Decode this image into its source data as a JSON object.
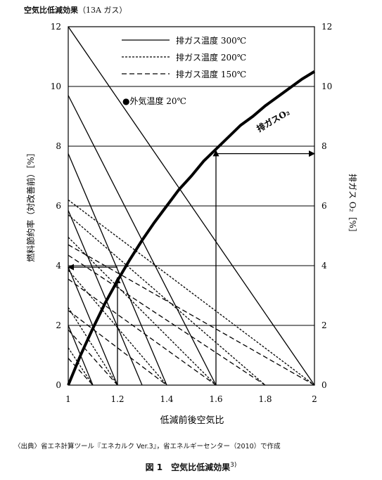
{
  "header": {
    "title": "空気比低減効果",
    "title_sub": "（13A ガス）"
  },
  "source_note": "〈出典〉省エネ計算ツール『エネカルク Ver.3』，省エネルギーセンター（2010）で作成",
  "caption": {
    "label": "図 1　空気比低減効果",
    "ref": "3)"
  },
  "chart_data": {
    "type": "line",
    "xlabel": "低減前後空気比",
    "ylabel": "燃料節約率（対改善前）［%］",
    "y2label": "排ガス O₂［%］",
    "xlim": [
      1,
      2
    ],
    "ylim": [
      0,
      12
    ],
    "y2lim": [
      0,
      12
    ],
    "x_ticks": [
      "1",
      "1.2",
      "1.4",
      "1.6",
      "1.8",
      "2"
    ],
    "y_ticks": [
      "0",
      "2",
      "4",
      "6",
      "8",
      "10",
      "12"
    ],
    "y2_ticks": [
      "0",
      "2",
      "4",
      "6",
      "8",
      "10",
      "12"
    ],
    "grid": {
      "horizontal": true,
      "vertical": false
    },
    "legend": {
      "position": "top-right",
      "items": [
        {
          "label": "排ガス温度 300℃",
          "style": "solid"
        },
        {
          "label": "排ガス温度 200℃",
          "style": "dotted"
        },
        {
          "label": "排ガス温度 150℃",
          "style": "dashed"
        }
      ]
    },
    "annotation": "●外気温度 20℃",
    "curve": {
      "name": "排ガスO₂",
      "axis": "right",
      "x": [
        1.0,
        1.05,
        1.1,
        1.15,
        1.2,
        1.25,
        1.3,
        1.35,
        1.4,
        1.45,
        1.5,
        1.55,
        1.6,
        1.65,
        1.7,
        1.75,
        1.8,
        1.85,
        1.9,
        1.95,
        2.0
      ],
      "y": [
        0,
        1.0,
        1.9,
        2.75,
        3.5,
        4.2,
        4.85,
        5.45,
        6.0,
        6.55,
        7.0,
        7.5,
        7.9,
        8.3,
        8.7,
        9.0,
        9.35,
        9.65,
        9.95,
        10.25,
        10.5
      ]
    },
    "families": [
      {
        "name": "排ガス温度 300℃",
        "style": "solid",
        "lines": [
          {
            "to_x": 1.1,
            "start_y": 2.0
          },
          {
            "to_x": 1.2,
            "start_y": 3.95
          },
          {
            "to_x": 1.3,
            "start_y": 5.85
          },
          {
            "to_x": 1.4,
            "start_y": 7.75
          },
          {
            "to_x": 1.6,
            "start_y": 9.7
          },
          {
            "to_x": 2.0,
            "start_y": 12.0
          }
        ]
      },
      {
        "name": "排ガス温度 200℃",
        "style": "dotted",
        "lines": [
          {
            "to_x": 1.1,
            "start_y": 1.25
          },
          {
            "to_x": 1.2,
            "start_y": 2.6
          },
          {
            "to_x": 1.4,
            "start_y": 3.85
          },
          {
            "to_x": 1.6,
            "start_y": 4.95
          },
          {
            "to_x": 1.8,
            "start_y": 5.7
          },
          {
            "to_x": 2.0,
            "start_y": 6.2
          }
        ]
      },
      {
        "name": "排ガス温度 150℃",
        "style": "dashed",
        "lines": [
          {
            "to_x": 1.1,
            "start_y": 0.9
          },
          {
            "to_x": 1.2,
            "start_y": 1.85
          },
          {
            "to_x": 1.4,
            "start_y": 2.5
          },
          {
            "to_x": 1.6,
            "start_y": 3.55
          },
          {
            "to_x": 1.8,
            "start_y": 4.35
          },
          {
            "to_x": 2.0,
            "start_y": 4.7
          }
        ]
      }
    ],
    "guides": [
      {
        "from": [
          1.2,
          0
        ],
        "to": [
          1.2,
          3.6
        ],
        "arrow": "end"
      },
      {
        "from": [
          1.2,
          3.95
        ],
        "to": [
          1.0,
          3.95
        ],
        "arrow": "end"
      },
      {
        "from": [
          1.6,
          0
        ],
        "to": [
          1.6,
          7.85
        ],
        "arrow": "end"
      },
      {
        "from": [
          1.6,
          7.75
        ],
        "to": [
          2.0,
          7.75
        ],
        "arrow": "end"
      }
    ]
  }
}
